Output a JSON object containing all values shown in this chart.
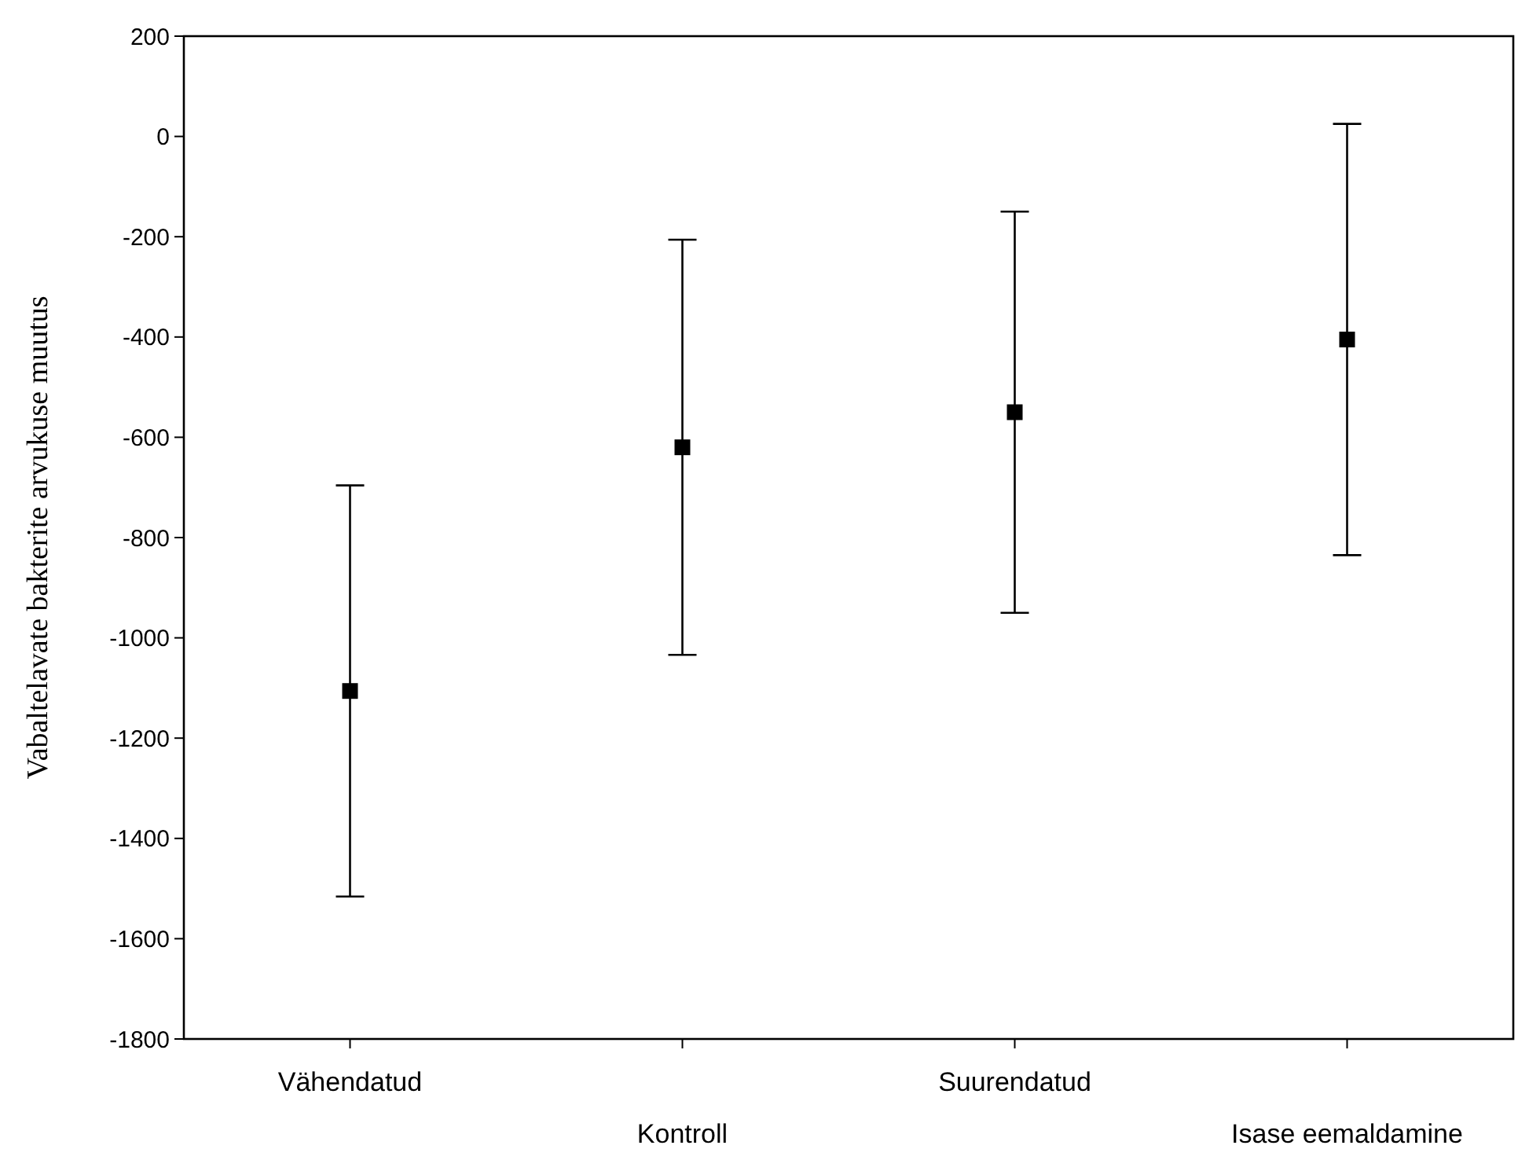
{
  "chart_data": {
    "type": "scatter",
    "ylabel": "Vabaltelavate bakterite arvukuse muutus",
    "categories": [
      "Vähendatud",
      "Kontroll",
      "Suurendatud",
      "Isase eemaldamine"
    ],
    "values": [
      -1106,
      -620,
      -550,
      -405
    ],
    "errors": [
      410,
      414,
      400,
      430
    ],
    "color": "#000000",
    "marker": "square",
    "grid": false,
    "ylim": [
      -1800,
      200
    ],
    "yticks": [
      -1800,
      -1600,
      -1400,
      -1200,
      -1000,
      -800,
      -600,
      -400,
      -200,
      0,
      200
    ]
  }
}
